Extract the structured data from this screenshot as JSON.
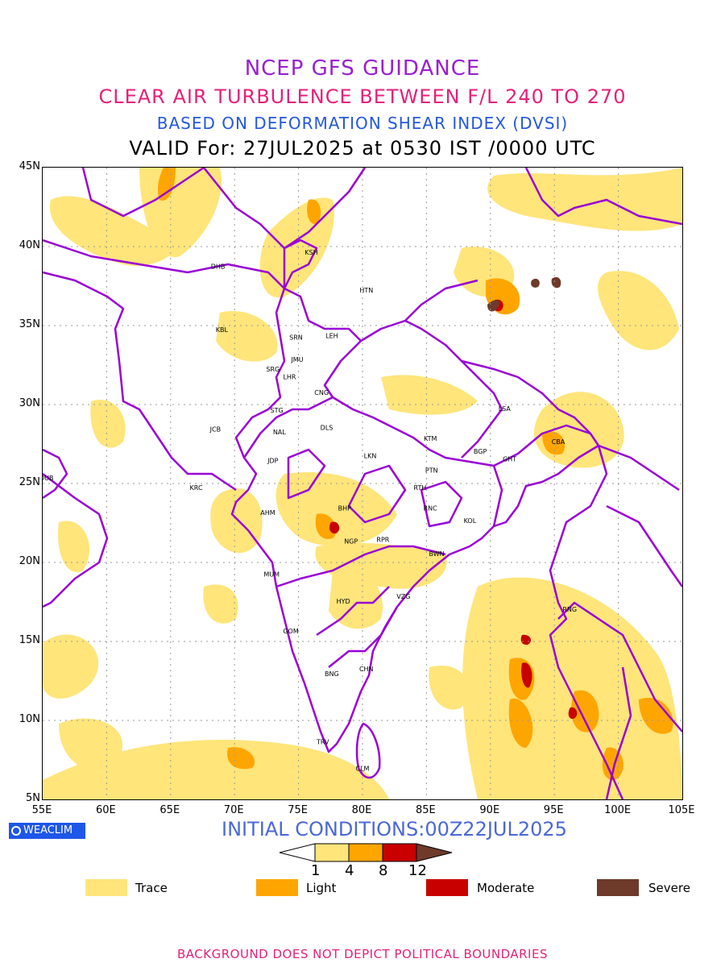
{
  "titles": {
    "line1": "NCEP GFS GUIDANCE",
    "line2": "CLEAR AIR TURBULENCE BETWEEN F/L 240 TO 270",
    "line3": "BASED ON DEFORMATION SHEAR INDEX (DVSI)",
    "line4": "VALID For: 27JUL2025 at 0530 IST /0000 UTC"
  },
  "map": {
    "lat_ticks": [
      "45N",
      "40N",
      "35N",
      "30N",
      "25N",
      "20N",
      "15N",
      "10N",
      "5N"
    ],
    "lon_ticks": [
      "55E",
      "60E",
      "65E",
      "70E",
      "75E",
      "80E",
      "85E",
      "90E",
      "95E",
      "100E",
      "105E"
    ],
    "extent": {
      "lon": [
        55,
        105
      ],
      "lat": [
        5,
        45
      ]
    },
    "stations": [
      {
        "code": "KSH",
        "lon": 76.0,
        "lat": 39.5
      },
      {
        "code": "DHB",
        "lon": 68.7,
        "lat": 38.6
      },
      {
        "code": "HTN",
        "lon": 80.3,
        "lat": 37.1
      },
      {
        "code": "KBL",
        "lon": 69.0,
        "lat": 34.6
      },
      {
        "code": "SRN",
        "lon": 74.8,
        "lat": 34.1
      },
      {
        "code": "LEH",
        "lon": 77.6,
        "lat": 34.2
      },
      {
        "code": "JMU",
        "lon": 74.9,
        "lat": 32.7
      },
      {
        "code": "SRG",
        "lon": 73.0,
        "lat": 32.1
      },
      {
        "code": "LHR",
        "lon": 74.3,
        "lat": 31.6
      },
      {
        "code": "CNG",
        "lon": 76.8,
        "lat": 30.6
      },
      {
        "code": "LSA",
        "lon": 91.1,
        "lat": 29.6
      },
      {
        "code": "STG",
        "lon": 73.3,
        "lat": 29.5
      },
      {
        "code": "JCB",
        "lon": 68.5,
        "lat": 28.3
      },
      {
        "code": "DLS",
        "lon": 77.2,
        "lat": 28.4
      },
      {
        "code": "NAL",
        "lon": 73.5,
        "lat": 28.1
      },
      {
        "code": "KTM",
        "lon": 85.3,
        "lat": 27.7
      },
      {
        "code": "CBA",
        "lon": 95.3,
        "lat": 27.5
      },
      {
        "code": "BGP",
        "lon": 89.2,
        "lat": 26.9
      },
      {
        "code": "LKN",
        "lon": 80.6,
        "lat": 26.6
      },
      {
        "code": "JDP",
        "lon": 73.0,
        "lat": 26.3
      },
      {
        "code": "GHT",
        "lon": 91.5,
        "lat": 26.4
      },
      {
        "code": "PTN",
        "lon": 85.4,
        "lat": 25.7
      },
      {
        "code": "DUB",
        "lon": 55.3,
        "lat": 25.2
      },
      {
        "code": "RTH",
        "lon": 84.5,
        "lat": 24.6
      },
      {
        "code": "KRC",
        "lon": 67.0,
        "lat": 24.6
      },
      {
        "code": "BHP",
        "lon": 78.6,
        "lat": 23.3
      },
      {
        "code": "RNC",
        "lon": 85.3,
        "lat": 23.3
      },
      {
        "code": "AHM",
        "lon": 72.6,
        "lat": 23.0
      },
      {
        "code": "KOL",
        "lon": 88.4,
        "lat": 22.5
      },
      {
        "code": "NGP",
        "lon": 79.1,
        "lat": 21.2
      },
      {
        "code": "RPR",
        "lon": 81.6,
        "lat": 21.3
      },
      {
        "code": "BWN",
        "lon": 85.8,
        "lat": 20.4
      },
      {
        "code": "MUM",
        "lon": 72.9,
        "lat": 19.1
      },
      {
        "code": "HYD",
        "lon": 78.5,
        "lat": 17.4
      },
      {
        "code": "VZG",
        "lon": 83.2,
        "lat": 17.7
      },
      {
        "code": "RNG",
        "lon": 96.2,
        "lat": 16.9
      },
      {
        "code": "GOM",
        "lon": 74.4,
        "lat": 15.5
      },
      {
        "code": "CHN",
        "lon": 80.3,
        "lat": 13.1
      },
      {
        "code": "BNG",
        "lon": 77.6,
        "lat": 12.8
      },
      {
        "code": "TRV",
        "lon": 76.9,
        "lat": 8.5
      },
      {
        "code": "CLM",
        "lon": 80.0,
        "lat": 6.8
      }
    ]
  },
  "branding": {
    "logo_text": "WEACLIM"
  },
  "initial_conditions": "INITIAL CONDITIONS:00Z22JUL2025",
  "colorbar": {
    "ticks": [
      "1",
      "4",
      "8",
      "12"
    ],
    "colors": [
      "#ffe57a",
      "#ffa500",
      "#c80000",
      "#6e3a2a"
    ]
  },
  "legend": [
    {
      "label": "Trace",
      "color": "#ffe57a"
    },
    {
      "label": "Light",
      "color": "#ffa500"
    },
    {
      "label": "Moderate",
      "color": "#c80000"
    },
    {
      "label": "Severe",
      "color": "#6e3a2a"
    }
  ],
  "footer": "BACKGROUND DOES NOT DEPICT POLITICAL BOUNDARIES"
}
